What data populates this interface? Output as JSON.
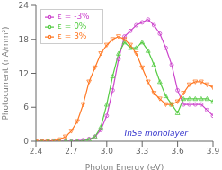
{
  "chart_data": {
    "type": "line",
    "xlabel": "Photon Energy (eV)",
    "ylabel": "Photocurrent (nA/mm²)",
    "xlim": [
      2.4,
      3.9
    ],
    "ylim": [
      0,
      24
    ],
    "xticks": [
      2.4,
      2.7,
      {
        "value": 3.0,
        "label": "3.0"
      },
      3.3,
      3.6,
      3.9
    ],
    "yticks": [
      0,
      6,
      12,
      18,
      24
    ],
    "grid": false,
    "legend": "upper left",
    "annotations": [
      {
        "text": "InSe monolayer",
        "x": 3.15,
        "y": 1.5,
        "color": "#3333cc"
      }
    ],
    "x": [
      2.4,
      2.45,
      2.5,
      2.55,
      2.6,
      2.65,
      2.7,
      2.75,
      2.8,
      2.85,
      2.9,
      2.95,
      3.0,
      3.05,
      3.1,
      3.15,
      3.2,
      3.25,
      3.3,
      3.35,
      3.4,
      3.45,
      3.5,
      3.55,
      3.6,
      3.65,
      3.7,
      3.75,
      3.8,
      3.85,
      3.9
    ],
    "series": [
      {
        "name": "ε = -3%",
        "color": "#cc44cc",
        "marker": "circle",
        "values": [
          0.0,
          0.0,
          0.0,
          0.0,
          0.0,
          0.0,
          0.0,
          0.1,
          0.2,
          0.4,
          0.8,
          2.0,
          4.5,
          9.0,
          14.5,
          18.5,
          19.5,
          20.5,
          21.0,
          21.5,
          20.5,
          19.0,
          16.5,
          13.5,
          9.0,
          6.5,
          6.5,
          6.5,
          6.5,
          5.5,
          4.5
        ]
      },
      {
        "name": "ε = 0%",
        "color": "#55cc44",
        "marker": "triangle-up",
        "values": [
          0.0,
          0.0,
          0.0,
          0.0,
          0.0,
          0.0,
          0.0,
          0.0,
          0.1,
          0.3,
          0.8,
          2.5,
          6.5,
          11.5,
          15.5,
          17.5,
          16.5,
          16.5,
          17.5,
          16.0,
          13.5,
          10.5,
          8.0,
          6.5,
          5.0,
          7.5,
          7.5,
          7.5,
          7.5,
          7.5,
          7.0
        ]
      },
      {
        "name": "ε = 3%",
        "color": "#ff7722",
        "marker": "triangle-down",
        "values": [
          0.0,
          0.0,
          0.05,
          0.1,
          0.3,
          0.8,
          1.8,
          3.5,
          6.5,
          10.5,
          13.0,
          15.5,
          17.0,
          18.0,
          18.5,
          18.0,
          17.0,
          15.5,
          13.0,
          10.5,
          8.5,
          7.5,
          6.5,
          6.5,
          7.0,
          8.5,
          10.0,
          10.5,
          10.5,
          10.0,
          9.5
        ]
      }
    ]
  }
}
